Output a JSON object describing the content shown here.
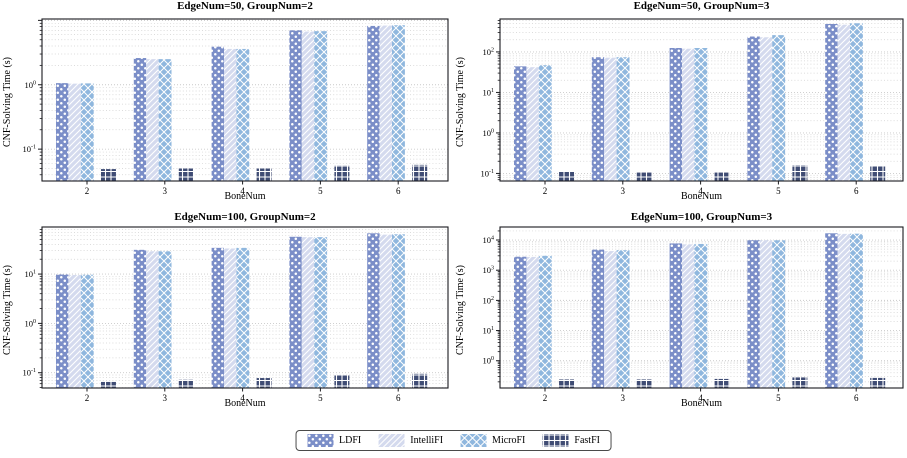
{
  "figure": {
    "ylabel": "CNF-Solving Time (s)",
    "xlabel": "BoneNum"
  },
  "legend": {
    "position": "bottom-center",
    "items": [
      {
        "label": "LDFI",
        "color": "#7b8ec8",
        "hatch": "dots"
      },
      {
        "label": "IntelliFI",
        "color": "#d4daee",
        "hatch": "diagonal"
      },
      {
        "label": "MicroFI",
        "color": "#8fb7de",
        "hatch": "cross"
      },
      {
        "label": "FastFI",
        "color": "#3f4c74",
        "hatch": "grid"
      }
    ]
  },
  "style": {
    "hatch_color": "#ffffff",
    "gridline_color": "#c9c9c9",
    "spine_color": "#1a1a1e",
    "grid": "dotted-log-minor"
  },
  "chart_data": [
    {
      "type": "bar",
      "title": "EdgeNum=50, GroupNum=2",
      "xlabel": "BoneNum",
      "ylabel": "CNF-Solving Time (s)",
      "yscale": "log",
      "categories": [
        "2",
        "3",
        "4",
        "5",
        "6"
      ],
      "ylim": [
        0.032,
        10.5
      ],
      "ytick_exponents": [
        -1,
        0
      ],
      "series": [
        {
          "name": "LDFI",
          "values": [
            1.06,
            2.6,
            3.9,
            7.0,
            8.2
          ]
        },
        {
          "name": "IntelliFI",
          "values": [
            1.04,
            2.5,
            3.6,
            6.7,
            8.3
          ]
        },
        {
          "name": "MicroFI",
          "values": [
            1.05,
            2.5,
            3.6,
            6.8,
            8.4
          ]
        },
        {
          "name": "FastFI",
          "values": [
            0.049,
            0.05,
            0.05,
            0.056,
            0.057
          ]
        }
      ]
    },
    {
      "type": "bar",
      "title": "EdgeNum=50, GroupNum=3",
      "xlabel": "BoneNum",
      "ylabel": "CNF-Solving Time (s)",
      "yscale": "log",
      "categories": [
        "2",
        "3",
        "4",
        "5",
        "6"
      ],
      "ylim": [
        0.065,
        650
      ],
      "ytick_exponents": [
        -1,
        0,
        1,
        2
      ],
      "series": [
        {
          "name": "LDFI",
          "values": [
            44,
            74,
            125,
            240,
            490
          ]
        },
        {
          "name": "IntelliFI",
          "values": [
            42,
            72,
            120,
            230,
            470
          ]
        },
        {
          "name": "MicroFI",
          "values": [
            47,
            74,
            125,
            260,
            510
          ]
        },
        {
          "name": "FastFI",
          "values": [
            0.11,
            0.105,
            0.105,
            0.16,
            0.15
          ]
        }
      ]
    },
    {
      "type": "bar",
      "title": "EdgeNum=100, GroupNum=2",
      "xlabel": "BoneNum",
      "ylabel": "CNF-Solving Time (s)",
      "yscale": "log",
      "categories": [
        "2",
        "3",
        "4",
        "5",
        "6"
      ],
      "ylim": [
        0.049,
        90
      ],
      "ytick_exponents": [
        -1,
        0,
        1
      ],
      "series": [
        {
          "name": "LDFI",
          "values": [
            9.8,
            31,
            34,
            57,
            67
          ]
        },
        {
          "name": "IntelliFI",
          "values": [
            9.6,
            29,
            33,
            56,
            63
          ]
        },
        {
          "name": "MicroFI",
          "values": [
            9.7,
            29,
            34,
            56,
            64
          ]
        },
        {
          "name": "FastFI",
          "values": [
            0.065,
            0.072,
            0.078,
            0.09,
            0.095
          ]
        }
      ]
    },
    {
      "type": "bar",
      "title": "EdgeNum=100, GroupNum=3",
      "xlabel": "BoneNum",
      "ylabel": "CNF-Solving Time (s)",
      "yscale": "log",
      "categories": [
        "2",
        "3",
        "4",
        "5",
        "6"
      ],
      "ylim": [
        0.125,
        27000
      ],
      "ytick_exponents": [
        0,
        1,
        2,
        3,
        4
      ],
      "series": [
        {
          "name": "LDFI",
          "values": [
            2800,
            4800,
            7700,
            9800,
            16700
          ]
        },
        {
          "name": "IntelliFI",
          "values": [
            2750,
            4300,
            7200,
            9900,
            16000
          ]
        },
        {
          "name": "MicroFI",
          "values": [
            3000,
            4600,
            7400,
            9800,
            16200
          ]
        },
        {
          "name": "FastFI",
          "values": [
            0.24,
            0.24,
            0.25,
            0.28,
            0.27
          ]
        }
      ]
    }
  ]
}
